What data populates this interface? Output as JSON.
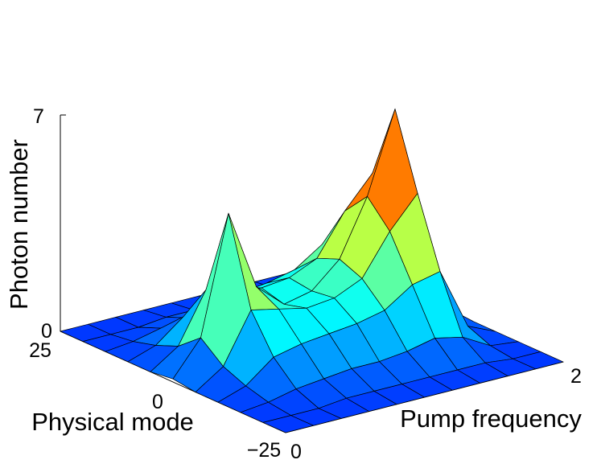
{
  "chart_data": {
    "type": "surface",
    "title": "",
    "xlabel": "Pump frequency",
    "ylabel": "Physical mode",
    "zlabel": "Photon number",
    "x_ticks": [
      "0",
      "2"
    ],
    "y_ticks": [
      "25",
      "0",
      "−25"
    ],
    "z_ticks": [
      "0",
      "7"
    ],
    "xlim": [
      0,
      2
    ],
    "ylim": [
      -25,
      25
    ],
    "zlim": [
      0,
      7
    ],
    "colormap": "jet",
    "grid": false,
    "x": [
      0.0,
      0.2,
      0.4,
      0.6,
      0.8,
      1.0,
      1.2,
      1.4,
      1.6,
      1.8,
      2.0
    ],
    "y": [
      25,
      20,
      15,
      10,
      5,
      0,
      -5,
      -10,
      -15,
      -20,
      -25
    ],
    "z": [
      [
        0.0,
        0.0,
        0.0,
        0.0,
        0.0,
        0.0,
        0.0,
        0.0,
        0.0,
        0.0,
        0.0
      ],
      [
        0.0,
        0.0,
        0.0,
        0.1,
        0.1,
        0.1,
        0.1,
        0.1,
        0.1,
        0.0,
        0.0
      ],
      [
        0.0,
        0.1,
        0.3,
        0.4,
        0.5,
        0.5,
        0.6,
        0.8,
        0.6,
        0.1,
        0.0
      ],
      [
        0.0,
        0.3,
        1.0,
        1.2,
        1.3,
        1.4,
        1.6,
        2.2,
        2.4,
        0.4,
        0.0
      ],
      [
        0.0,
        0.6,
        2.2,
        2.0,
        1.8,
        1.9,
        2.3,
        3.6,
        4.6,
        0.7,
        0.0
      ],
      [
        0.1,
        1.2,
        5.0,
        2.4,
        1.6,
        1.8,
        2.6,
        4.4,
        7.0,
        1.0,
        0.0
      ],
      [
        0.0,
        0.6,
        2.2,
        2.0,
        1.8,
        1.9,
        2.3,
        3.6,
        4.6,
        0.7,
        0.0
      ],
      [
        0.0,
        0.3,
        1.0,
        1.2,
        1.3,
        1.4,
        1.6,
        2.2,
        2.4,
        0.4,
        0.0
      ],
      [
        0.0,
        0.1,
        0.3,
        0.4,
        0.5,
        0.5,
        0.6,
        0.8,
        0.6,
        0.1,
        0.0
      ],
      [
        0.0,
        0.0,
        0.0,
        0.1,
        0.1,
        0.1,
        0.1,
        0.1,
        0.1,
        0.0,
        0.0
      ],
      [
        0.0,
        0.0,
        0.0,
        0.0,
        0.0,
        0.0,
        0.0,
        0.0,
        0.0,
        0.0,
        0.0
      ]
    ]
  }
}
